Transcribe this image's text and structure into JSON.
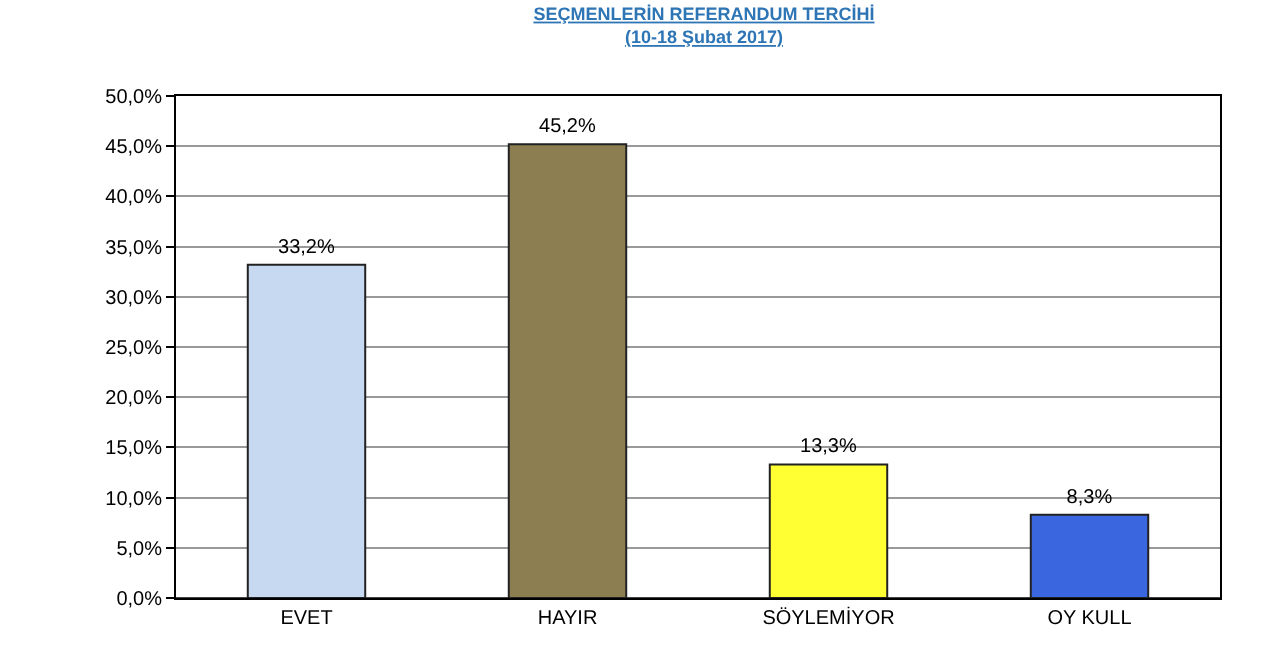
{
  "chart_data": {
    "type": "bar",
    "title": "SEÇMENLERİN REFERANDUM TERCİHİ",
    "subtitle": "(10-18 Şubat 2017)",
    "categories": [
      "EVET",
      "HAYIR",
      "SÖYLEMİYOR",
      "OY KULL"
    ],
    "values": [
      33.2,
      45.2,
      13.3,
      8.3
    ],
    "value_labels": [
      "33,2%",
      "45,2%",
      "13,3%",
      "8,3%"
    ],
    "colors": [
      "#c6d9f1",
      "#8c7e50",
      "#ffff33",
      "#3a66e0"
    ],
    "ylim": [
      0,
      50
    ],
    "yticks": [
      {
        "value": 0,
        "label": "0,0%"
      },
      {
        "value": 5,
        "label": "5,0%"
      },
      {
        "value": 10,
        "label": "10,0%"
      },
      {
        "value": 15,
        "label": "15,0%"
      },
      {
        "value": 20,
        "label": "20,0%"
      },
      {
        "value": 25,
        "label": "25,0%"
      },
      {
        "value": 30,
        "label": "30,0%"
      },
      {
        "value": 35,
        "label": "35,0%"
      },
      {
        "value": 40,
        "label": "40,0%"
      },
      {
        "value": 45,
        "label": "45,0%"
      },
      {
        "value": 50,
        "label": "50,0%"
      }
    ],
    "grid": "y"
  }
}
